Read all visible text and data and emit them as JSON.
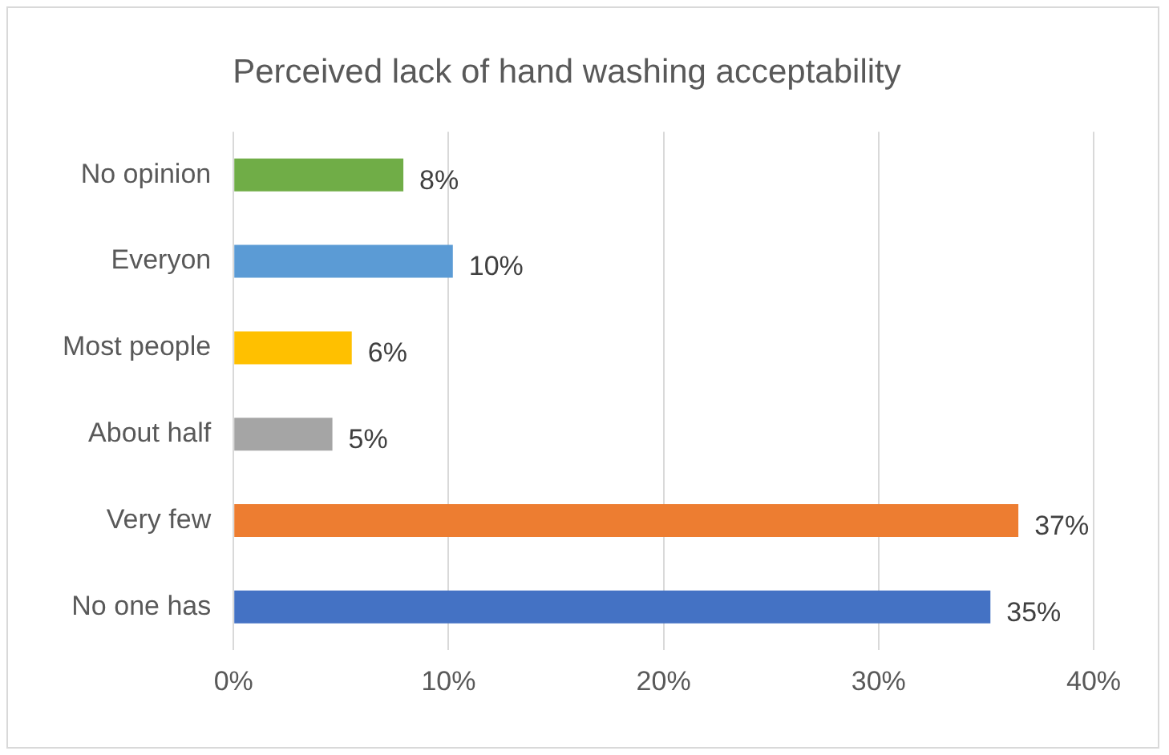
{
  "chart_data": {
    "type": "bar",
    "orientation": "horizontal",
    "title": "Perceived lack of hand washing acceptability",
    "categories": [
      "No opinion",
      "Everyon",
      "Most people",
      "About half",
      "Very few",
      "No one has"
    ],
    "values": [
      7.9,
      10.2,
      5.5,
      4.6,
      36.5,
      35.2
    ],
    "colors": [
      "#70ad47",
      "#5b9bd5",
      "#ffc000",
      "#a5a5a5",
      "#ed7d31",
      "#4472c4"
    ],
    "value_labels": [
      "8%",
      "10%",
      "6%",
      "5%",
      "37%",
      "35%"
    ],
    "xlim": [
      0,
      40
    ],
    "xticks": [
      {
        "value": 0,
        "label": "0%"
      },
      {
        "value": 10,
        "label": "10%"
      },
      {
        "value": 20,
        "label": "20%"
      },
      {
        "value": 30,
        "label": "30%"
      },
      {
        "value": 40,
        "label": "40%"
      }
    ],
    "grid": "x",
    "legend": false
  }
}
